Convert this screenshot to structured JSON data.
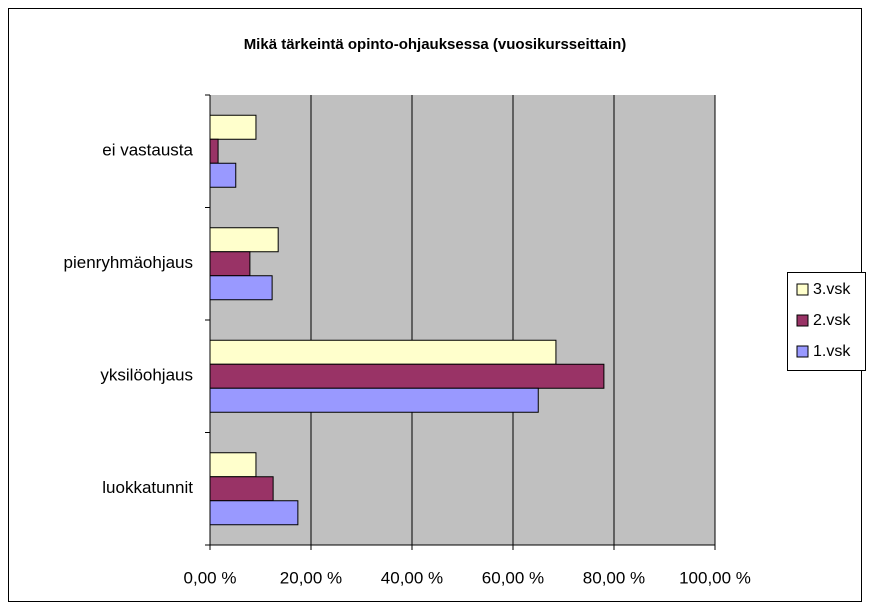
{
  "chart_data": {
    "type": "bar",
    "orientation": "horizontal",
    "title": "Mikä tärkeintä opinto-ohjauksessa (vuosikursseittain)",
    "categories": [
      "ei vastausta",
      "pienryhmäohjaus",
      "yksilöohjaus",
      "luokkatunnit"
    ],
    "series": [
      {
        "name": "3.vsk",
        "color": "#ffffcc",
        "values": [
          9.1,
          13.5,
          68.5,
          9.1
        ]
      },
      {
        "name": "2.vsk",
        "color": "#993366",
        "values": [
          1.6,
          7.9,
          78.0,
          12.5
        ]
      },
      {
        "name": "1.vsk",
        "color": "#9999ff",
        "values": [
          5.1,
          12.3,
          65.0,
          17.4
        ]
      }
    ],
    "xlim": [
      0,
      100
    ],
    "xticks": [
      {
        "value": 0,
        "label": "0,00 %"
      },
      {
        "value": 20,
        "label": "20,00 %"
      },
      {
        "value": 40,
        "label": "40,00 %"
      },
      {
        "value": 60,
        "label": "60,00 %"
      },
      {
        "value": 80,
        "label": "80,00 %"
      },
      {
        "value": 100,
        "label": "100,00 %"
      }
    ],
    "grid": true,
    "legend": "right",
    "plot_background": "#c0c0c0"
  }
}
